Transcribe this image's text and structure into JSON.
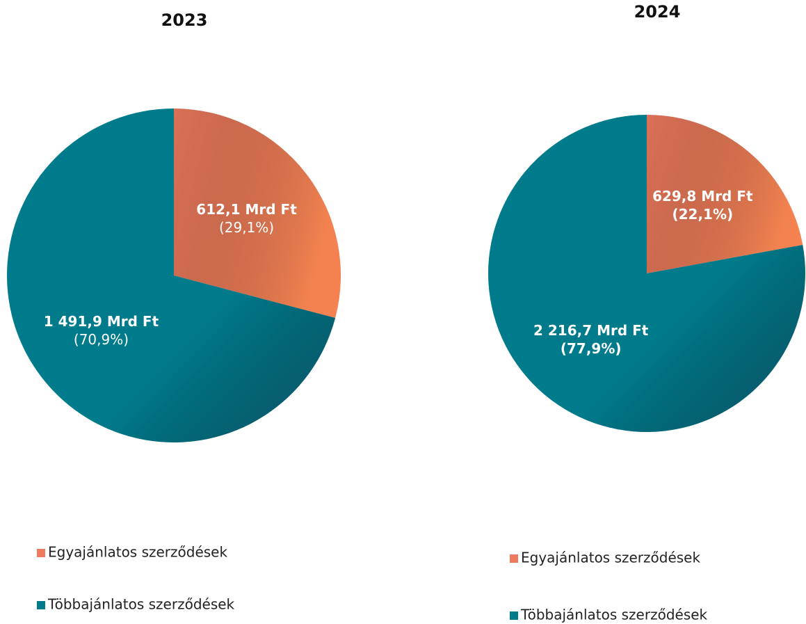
{
  "chart_data": [
    {
      "type": "pie",
      "title": "2023",
      "categories": [
        "Egyajánlatos szerződések",
        "Többajánlatos szerződések"
      ],
      "values": [
        612.1,
        1491.9
      ],
      "value_labels": [
        "612,1 Mrd Ft",
        "1 491,9 Mrd Ft"
      ],
      "percents": [
        29.1,
        70.9
      ],
      "percent_labels": [
        "(29,1%)",
        "(70,9%)"
      ],
      "colors": [
        "#ee7b5f",
        "#007b8c"
      ]
    },
    {
      "type": "pie",
      "title": "2024",
      "categories": [
        "Egyajánlatos szerződések",
        "Többajánlatos szerződések"
      ],
      "values": [
        629.8,
        2216.7
      ],
      "value_labels": [
        "629,8 Mrd Ft",
        "2 216,7 Mrd Ft"
      ],
      "percents": [
        22.1,
        77.9
      ],
      "percent_labels": [
        "(22,1%)",
        "(77,9%)"
      ],
      "colors": [
        "#ee7b5f",
        "#007b8c"
      ]
    }
  ]
}
